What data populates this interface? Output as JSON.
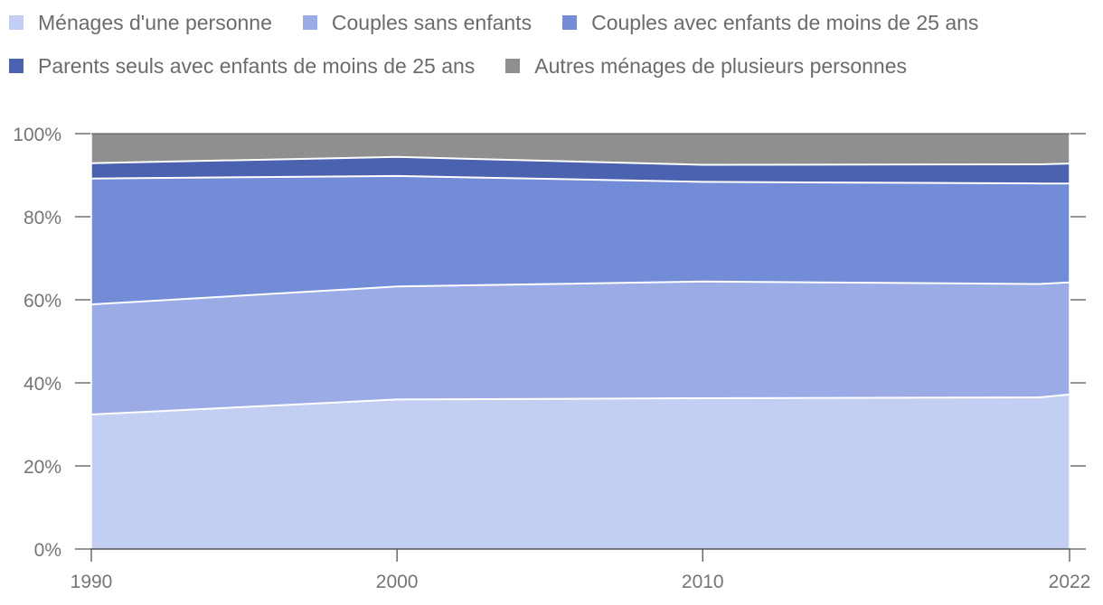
{
  "chart_data": {
    "type": "area",
    "stacked": true,
    "x": [
      1990,
      2000,
      2010,
      2021,
      2022
    ],
    "x_tick_labels": [
      "1990",
      "2000",
      "2010",
      "2022"
    ],
    "x_ticks": [
      1990,
      2000,
      2010,
      2022
    ],
    "y_tick_labels": [
      "100%",
      "80%",
      "60%",
      "40%",
      "20%",
      "0%"
    ],
    "y_ticks": [
      100,
      80,
      60,
      40,
      20,
      0
    ],
    "ylim": [
      0,
      100
    ],
    "xlim": [
      1990,
      2022
    ],
    "legend_position": "top",
    "series": [
      {
        "name": "Ménages d'une personne",
        "color": "#c3cff2",
        "values": [
          32.4,
          36.0,
          36.3,
          36.5,
          37.2
        ]
      },
      {
        "name": "Couples sans enfants",
        "color": "#9badе6",
        "values": [
          26.5,
          27.2,
          28.1,
          27.3,
          27.0
        ]
      },
      {
        "name": "Couples avec enfants de moins de 25 ans",
        "color": "#728cd7",
        "values": [
          30.3,
          26.6,
          24.0,
          24.2,
          23.8
        ]
      },
      {
        "name": "Parents seuls avec enfants de moins de 25 ans",
        "color": "#4a62b0",
        "values": [
          3.7,
          4.6,
          4.1,
          4.6,
          4.8
        ]
      },
      {
        "name": "Autres ménages de plusieurs personnes",
        "color": "#8f8f8f",
        "values": [
          7.1,
          5.6,
          7.5,
          7.4,
          7.2
        ]
      }
    ]
  },
  "legend": {
    "rows": [
      [
        0,
        1,
        2
      ],
      [
        3,
        4
      ]
    ]
  }
}
